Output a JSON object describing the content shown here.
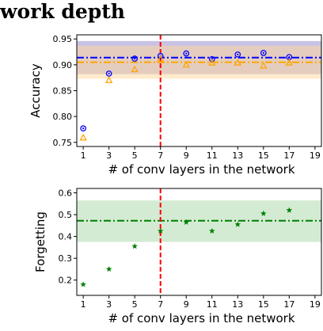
{
  "heading": "work depth",
  "colors": {
    "accuracy_primary": "#0000ff",
    "accuracy_secondary": "#ffa500",
    "forgetting": "#008000",
    "vline": "#ff0000",
    "band_blue": "#9a8fcf",
    "band_orange": "#ffd79a",
    "band_green": "#a8d8a8"
  },
  "chart_data": [
    {
      "type": "scatter",
      "xlabel": "# of conv layers in the network",
      "ylabel": "Accuracy",
      "xlim": [
        0.5,
        19.5
      ],
      "ylim": [
        0.742,
        0.958
      ],
      "xticks": [
        "1",
        "3",
        "5",
        "7",
        "9",
        "11",
        "13",
        "15",
        "17",
        "19"
      ],
      "yticks": [
        "0.75",
        "0.80",
        "0.85",
        "0.90",
        "0.95"
      ],
      "vline_x": 7,
      "series": [
        {
          "marker": "circle-dot",
          "color": "#0000ff",
          "x": [
            1,
            3,
            5,
            7,
            9,
            11,
            13,
            15,
            17
          ],
          "y": [
            0.777,
            0.883,
            0.912,
            0.917,
            0.922,
            0.911,
            0.92,
            0.923,
            0.915
          ],
          "hline": 0.914,
          "band": [
            0.882,
            0.946
          ]
        },
        {
          "marker": "triangle",
          "color": "#ffa500",
          "x": [
            1,
            3,
            5,
            7,
            9,
            11,
            13,
            15,
            17
          ],
          "y": [
            0.759,
            0.87,
            0.891,
            0.911,
            0.9,
            0.904,
            0.904,
            0.898,
            0.904
          ],
          "hline": 0.905,
          "band": [
            0.873,
            0.937
          ]
        }
      ]
    },
    {
      "type": "scatter",
      "xlabel": "# of conv layers in the network",
      "ylabel": "Forgetting",
      "xlim": [
        0.5,
        19.5
      ],
      "ylim": [
        0.13,
        0.62
      ],
      "xticks": [
        "1",
        "3",
        "5",
        "7",
        "9",
        "11",
        "13",
        "15",
        "17",
        "19"
      ],
      "yticks": [
        "0.2",
        "0.3",
        "0.4",
        "0.5",
        "0.6"
      ],
      "vline_x": 7,
      "series": [
        {
          "marker": "star",
          "color": "#008000",
          "x": [
            1,
            3,
            5,
            7,
            9,
            11,
            13,
            15,
            17
          ],
          "y": [
            0.18,
            0.25,
            0.355,
            0.425,
            0.465,
            0.425,
            0.455,
            0.505,
            0.52
          ],
          "hline": 0.472,
          "band": [
            0.375,
            0.565
          ]
        }
      ]
    }
  ]
}
